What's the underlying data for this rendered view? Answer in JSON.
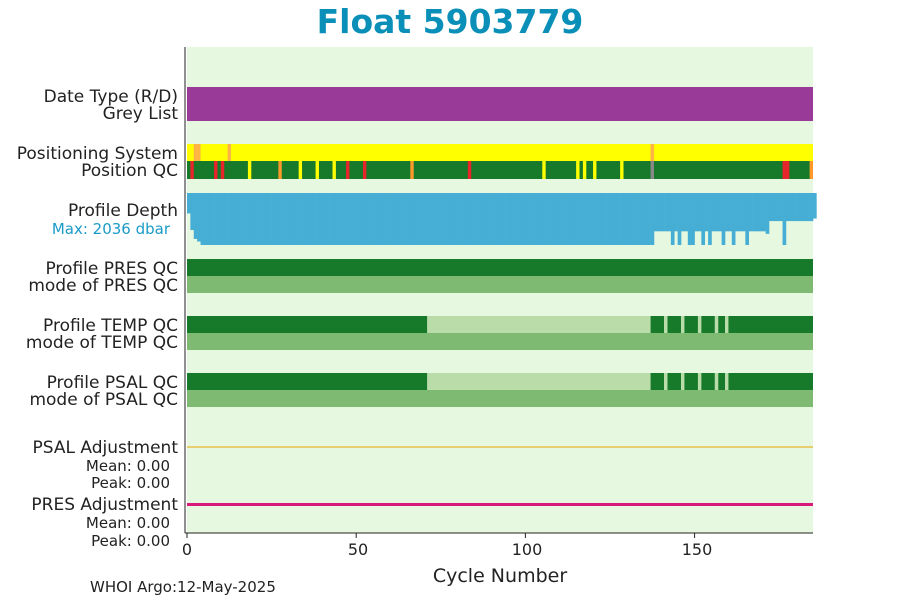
{
  "title": "Float 5903779",
  "footer": "WHOI Argo:12-May-2025",
  "chart_data": {
    "type": "heatmap",
    "xlabel": "Cycle Number",
    "xlim": [
      0,
      185
    ],
    "xticks": [
      "0",
      "50",
      "100",
      "150"
    ],
    "rows": {
      "date_type": {
        "label": "Date Type (R/D)",
        "color": "#993a98"
      },
      "grey_list": {
        "label": "Grey List"
      },
      "positioning_system": {
        "label": "Positioning System",
        "base_color": "#ffff00",
        "marks": [
          {
            "x": 2,
            "c": "#ffb347"
          },
          {
            "x": 3,
            "c": "#ffb347"
          },
          {
            "x": 12,
            "c": "#ffb347"
          },
          {
            "x": 137,
            "c": "#ffb347"
          }
        ]
      },
      "position_qc": {
        "label": "Position QC",
        "base_color": "#167a2a",
        "marks": [
          {
            "x": 1,
            "c": "#e8252a"
          },
          {
            "x": 8,
            "c": "#e8252a"
          },
          {
            "x": 10,
            "c": "#e8252a"
          },
          {
            "x": 18,
            "c": "#ffff00"
          },
          {
            "x": 27,
            "c": "#ff9a2a"
          },
          {
            "x": 33,
            "c": "#ffff00"
          },
          {
            "x": 38,
            "c": "#ffff00"
          },
          {
            "x": 43,
            "c": "#ffff00"
          },
          {
            "x": 47,
            "c": "#e8252a"
          },
          {
            "x": 52,
            "c": "#e8252a"
          },
          {
            "x": 66,
            "c": "#ff9a2a"
          },
          {
            "x": 83,
            "c": "#e8252a"
          },
          {
            "x": 105,
            "c": "#ffff00"
          },
          {
            "x": 115,
            "c": "#ffff00"
          },
          {
            "x": 117,
            "c": "#ffff00"
          },
          {
            "x": 120,
            "c": "#ffff00"
          },
          {
            "x": 128,
            "c": "#ffff00"
          },
          {
            "x": 137,
            "c": "#888888"
          },
          {
            "x": 176,
            "c": "#e8252a"
          },
          {
            "x": 177,
            "c": "#e8252a"
          },
          {
            "x": 184,
            "c": "#ff9a2a"
          }
        ]
      },
      "profile_depth": {
        "label": "Profile Depth",
        "max_label": "Max: 2036 dbar",
        "color": "#46aed4",
        "max_dbar": 2036,
        "depths": [
          800,
          1450,
          1800,
          1900,
          2036,
          2036,
          2036,
          2036,
          2036,
          2036,
          2036,
          2036,
          2036,
          2036,
          2036,
          2036,
          2036,
          2036,
          2036,
          2036,
          2036,
          2036,
          2036,
          2036,
          2036,
          2036,
          2036,
          2036,
          2036,
          2036,
          2036,
          2036,
          2036,
          2036,
          2036,
          2036,
          2036,
          2036,
          2036,
          2036,
          2036,
          2036,
          2036,
          2036,
          2036,
          2036,
          2036,
          2036,
          2036,
          2036,
          2036,
          2036,
          2036,
          2036,
          2036,
          2036,
          2036,
          2036,
          2036,
          2036,
          2036,
          2036,
          2036,
          2036,
          2036,
          2036,
          2036,
          2036,
          2036,
          2036,
          2036,
          2036,
          2036,
          2036,
          2036,
          2036,
          2036,
          2036,
          2036,
          2036,
          2036,
          2036,
          2036,
          2036,
          2036,
          2036,
          2036,
          2036,
          2036,
          2036,
          2036,
          2036,
          2036,
          2036,
          2036,
          2036,
          2036,
          2036,
          2036,
          2036,
          2036,
          2036,
          2036,
          2036,
          2036,
          2036,
          2036,
          2036,
          2036,
          2036,
          2036,
          2036,
          2036,
          2036,
          2036,
          2036,
          2036,
          2036,
          2036,
          2036,
          2036,
          2036,
          2036,
          2036,
          2036,
          2036,
          2036,
          2036,
          2036,
          2036,
          2036,
          2036,
          2036,
          2036,
          2036,
          2036,
          2036,
          2036,
          1500,
          1500,
          1500,
          1500,
          1500,
          2036,
          1500,
          2036,
          1500,
          1500,
          2036,
          2036,
          1500,
          1500,
          2036,
          1500,
          2036,
          1500,
          1500,
          1500,
          2036,
          1500,
          1500,
          2036,
          1500,
          1500,
          1500,
          2036,
          1500,
          1500,
          1500,
          1500,
          1500,
          1600,
          1100,
          1100,
          1100,
          1100,
          2036,
          1100,
          1100,
          1100,
          1100,
          1100,
          1100,
          1100,
          1100,
          1000
        ]
      },
      "pres_qc": {
        "label": "Profile PRES QC",
        "segments": [
          {
            "from": 0,
            "to": 185,
            "c": "#167a2a"
          }
        ]
      },
      "pres_mode": {
        "label": "mode of PRES QC",
        "color": "#7fba72"
      },
      "temp_qc": {
        "label": "Profile TEMP QC",
        "segments": [
          {
            "from": 0,
            "to": 71,
            "c": "#167a2a"
          },
          {
            "from": 71,
            "to": 137,
            "c": "#b9dca9"
          },
          {
            "from": 137,
            "to": 141,
            "c": "#167a2a"
          },
          {
            "from": 141,
            "to": 142,
            "c": "#b9dca9"
          },
          {
            "from": 142,
            "to": 146,
            "c": "#167a2a"
          },
          {
            "from": 146,
            "to": 147,
            "c": "#b9dca9"
          },
          {
            "from": 147,
            "to": 151,
            "c": "#167a2a"
          },
          {
            "from": 151,
            "to": 152,
            "c": "#b9dca9"
          },
          {
            "from": 152,
            "to": 156,
            "c": "#167a2a"
          },
          {
            "from": 156,
            "to": 157,
            "c": "#b9dca9"
          },
          {
            "from": 157,
            "to": 159,
            "c": "#167a2a"
          },
          {
            "from": 159,
            "to": 160,
            "c": "#b9dca9"
          },
          {
            "from": 160,
            "to": 185,
            "c": "#167a2a"
          }
        ]
      },
      "temp_mode": {
        "label": "mode of TEMP QC",
        "color": "#7fba72"
      },
      "psal_qc": {
        "label": "Profile PSAL QC",
        "segments": [
          {
            "from": 0,
            "to": 71,
            "c": "#167a2a"
          },
          {
            "from": 71,
            "to": 137,
            "c": "#b9dca9"
          },
          {
            "from": 137,
            "to": 141,
            "c": "#167a2a"
          },
          {
            "from": 141,
            "to": 142,
            "c": "#b9dca9"
          },
          {
            "from": 142,
            "to": 146,
            "c": "#167a2a"
          },
          {
            "from": 146,
            "to": 147,
            "c": "#b9dca9"
          },
          {
            "from": 147,
            "to": 151,
            "c": "#167a2a"
          },
          {
            "from": 151,
            "to": 152,
            "c": "#b9dca9"
          },
          {
            "from": 152,
            "to": 156,
            "c": "#167a2a"
          },
          {
            "from": 156,
            "to": 157,
            "c": "#b9dca9"
          },
          {
            "from": 157,
            "to": 159,
            "c": "#167a2a"
          },
          {
            "from": 159,
            "to": 160,
            "c": "#b9dca9"
          },
          {
            "from": 160,
            "to": 185,
            "c": "#167a2a"
          }
        ]
      },
      "psal_mode": {
        "label": "mode of PSAL QC",
        "color": "#7fba72"
      },
      "psal_adj": {
        "label": "PSAL Adjustment",
        "mean": "Mean: 0.00",
        "peak": "Peak: 0.00",
        "color": "#e8a200"
      },
      "pres_adj": {
        "label": "PRES Adjustment",
        "mean": "Mean: 0.00",
        "peak": "Peak: 0.00",
        "color": "#d81b7a"
      }
    },
    "background": "#e6f8df"
  }
}
